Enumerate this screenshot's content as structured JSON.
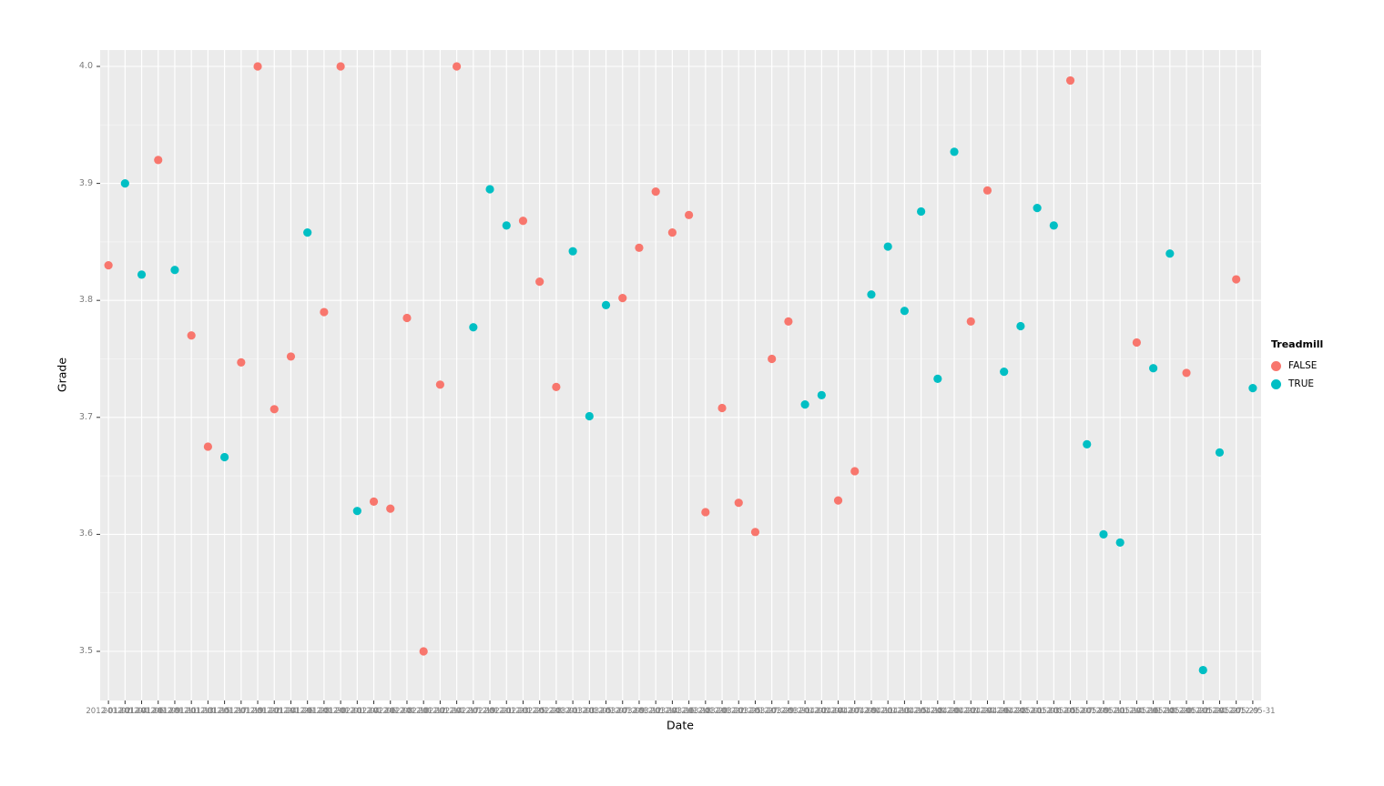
{
  "chart_data": {
    "type": "scatter",
    "title": "",
    "xlabel": "Date",
    "ylabel": "Grade",
    "y_ticks": [
      3.5,
      3.6,
      3.7,
      3.8,
      3.9,
      4.0
    ],
    "y_minor_ticks": [
      3.55,
      3.65,
      3.75,
      3.85,
      3.95
    ],
    "ylim": [
      3.458,
      4.014
    ],
    "x_tick_labels_overlapping": true,
    "grid": true,
    "legend": {
      "title": "Treadmill",
      "position": "right",
      "entries": [
        {
          "label": "FALSE",
          "color": "#F8766D"
        },
        {
          "label": "TRUE",
          "color": "#00BFC4"
        }
      ]
    },
    "colors": {
      "panel_bg": "#EBEBEB",
      "grid_major": "#FFFFFF",
      "grid_minor": "#FFFFFF",
      "tick_mark": "#333333",
      "tick_text": "#7C7C7C"
    },
    "points": [
      {
        "date": "2012-01-02",
        "grade": 3.83,
        "treadmill": false
      },
      {
        "date": "2012-01-04",
        "grade": 3.9,
        "treadmill": true
      },
      {
        "date": "2012-01-06",
        "grade": 3.822,
        "treadmill": true
      },
      {
        "date": "2012-01-09",
        "grade": 3.92,
        "treadmill": false
      },
      {
        "date": "2012-01-11",
        "grade": 3.826,
        "treadmill": true
      },
      {
        "date": "2012-01-13",
        "grade": 3.77,
        "treadmill": false
      },
      {
        "date": "2012-01-15",
        "grade": 3.675,
        "treadmill": false
      },
      {
        "date": "2012-01-17",
        "grade": 3.666,
        "treadmill": true
      },
      {
        "date": "2012-01-19",
        "grade": 3.747,
        "treadmill": false
      },
      {
        "date": "2012-01-22",
        "grade": 4.0,
        "treadmill": false
      },
      {
        "date": "2012-01-24",
        "grade": 3.707,
        "treadmill": false
      },
      {
        "date": "2012-01-26",
        "grade": 3.752,
        "treadmill": false
      },
      {
        "date": "2012-01-28",
        "grade": 3.858,
        "treadmill": true
      },
      {
        "date": "2012-01-30",
        "grade": 3.79,
        "treadmill": false
      },
      {
        "date": "2012-02-01",
        "grade": 4.0,
        "treadmill": false
      },
      {
        "date": "2012-02-04",
        "grade": 3.62,
        "treadmill": true
      },
      {
        "date": "2012-02-06",
        "grade": 3.628,
        "treadmill": false
      },
      {
        "date": "2012-02-08",
        "grade": 3.622,
        "treadmill": false
      },
      {
        "date": "2012-02-10",
        "grade": 3.785,
        "treadmill": false
      },
      {
        "date": "2012-02-12",
        "grade": 3.5,
        "treadmill": false
      },
      {
        "date": "2012-02-14",
        "grade": 3.728,
        "treadmill": false
      },
      {
        "date": "2012-02-17",
        "grade": 4.0,
        "treadmill": false
      },
      {
        "date": "2012-02-19",
        "grade": 3.777,
        "treadmill": true
      },
      {
        "date": "2012-02-21",
        "grade": 3.895,
        "treadmill": true
      },
      {
        "date": "2012-02-23",
        "grade": 3.864,
        "treadmill": true
      },
      {
        "date": "2012-02-25",
        "grade": 3.868,
        "treadmill": false
      },
      {
        "date": "2012-02-28",
        "grade": 3.816,
        "treadmill": false
      },
      {
        "date": "2012-03-01",
        "grade": 3.726,
        "treadmill": false
      },
      {
        "date": "2012-03-03",
        "grade": 3.842,
        "treadmill": true
      },
      {
        "date": "2012-03-05",
        "grade": 3.701,
        "treadmill": true
      },
      {
        "date": "2012-03-07",
        "grade": 3.796,
        "treadmill": true
      },
      {
        "date": "2012-03-09",
        "grade": 3.802,
        "treadmill": false
      },
      {
        "date": "2012-03-12",
        "grade": 3.845,
        "treadmill": false
      },
      {
        "date": "2012-03-14",
        "grade": 3.893,
        "treadmill": false
      },
      {
        "date": "2012-03-16",
        "grade": 3.858,
        "treadmill": false
      },
      {
        "date": "2012-03-18",
        "grade": 3.873,
        "treadmill": false
      },
      {
        "date": "2012-03-20",
        "grade": 3.619,
        "treadmill": false
      },
      {
        "date": "2012-03-22",
        "grade": 3.708,
        "treadmill": false
      },
      {
        "date": "2012-03-25",
        "grade": 3.627,
        "treadmill": false
      },
      {
        "date": "2012-03-27",
        "grade": 3.602,
        "treadmill": false
      },
      {
        "date": "2012-03-29",
        "grade": 3.75,
        "treadmill": false
      },
      {
        "date": "2012-03-31",
        "grade": 3.782,
        "treadmill": false
      },
      {
        "date": "2012-04-02",
        "grade": 3.711,
        "treadmill": true
      },
      {
        "date": "2012-04-04",
        "grade": 3.719,
        "treadmill": true
      },
      {
        "date": "2012-04-07",
        "grade": 3.629,
        "treadmill": false
      },
      {
        "date": "2012-04-09",
        "grade": 3.654,
        "treadmill": false
      },
      {
        "date": "2012-04-11",
        "grade": 3.805,
        "treadmill": true
      },
      {
        "date": "2012-04-13",
        "grade": 3.846,
        "treadmill": true
      },
      {
        "date": "2012-04-15",
        "grade": 3.791,
        "treadmill": true
      },
      {
        "date": "2012-04-18",
        "grade": 3.876,
        "treadmill": true
      },
      {
        "date": "2012-04-20",
        "grade": 3.733,
        "treadmill": true
      },
      {
        "date": "2012-04-22",
        "grade": 3.927,
        "treadmill": true
      },
      {
        "date": "2012-04-24",
        "grade": 3.782,
        "treadmill": false
      },
      {
        "date": "2012-04-26",
        "grade": 3.894,
        "treadmill": false
      },
      {
        "date": "2012-04-28",
        "grade": 3.739,
        "treadmill": true
      },
      {
        "date": "2012-05-01",
        "grade": 3.778,
        "treadmill": true
      },
      {
        "date": "2012-05-03",
        "grade": 3.879,
        "treadmill": true
      },
      {
        "date": "2012-05-05",
        "grade": 3.864,
        "treadmill": true
      },
      {
        "date": "2012-05-07",
        "grade": 3.988,
        "treadmill": false
      },
      {
        "date": "2012-05-09",
        "grade": 3.677,
        "treadmill": true
      },
      {
        "date": "2012-05-11",
        "grade": 3.6,
        "treadmill": true
      },
      {
        "date": "2012-05-14",
        "grade": 3.593,
        "treadmill": true
      },
      {
        "date": "2012-05-16",
        "grade": 3.764,
        "treadmill": false
      },
      {
        "date": "2012-05-18",
        "grade": 3.742,
        "treadmill": true
      },
      {
        "date": "2012-05-20",
        "grade": 3.84,
        "treadmill": true
      },
      {
        "date": "2012-05-22",
        "grade": 3.738,
        "treadmill": false
      },
      {
        "date": "2012-05-24",
        "grade": 3.484,
        "treadmill": true
      },
      {
        "date": "2012-05-27",
        "grade": 3.67,
        "treadmill": true
      },
      {
        "date": "2012-05-29",
        "grade": 3.818,
        "treadmill": false
      },
      {
        "date": "2012-05-31",
        "grade": 3.725,
        "treadmill": true
      }
    ]
  }
}
